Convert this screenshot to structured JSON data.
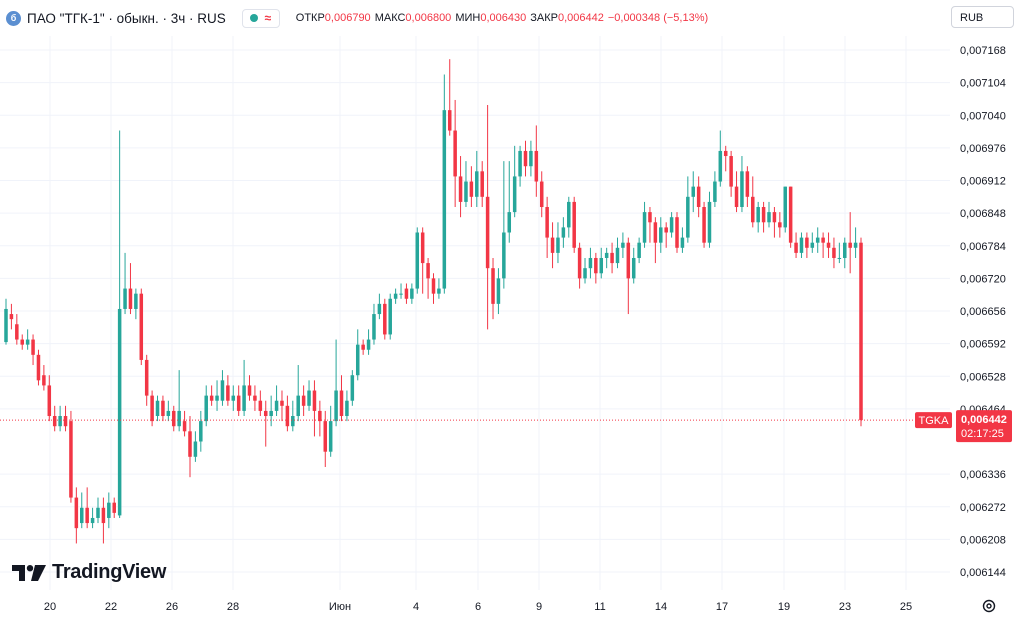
{
  "header": {
    "icon_letter": "б",
    "title": "ПАО \"ТГК-1\" · обыкн. · 3ч · RUS",
    "ohlc": [
      {
        "label": "ОТКР",
        "value": "0,006790"
      },
      {
        "label": "МАКС",
        "value": "0,006800"
      },
      {
        "label": "МИН",
        "value": "0,006430"
      },
      {
        "label": "ЗАКР",
        "value": "0,006442"
      }
    ],
    "change": "−0,000348 (−5,13%)"
  },
  "currency": "RUB",
  "logo_text": "TradingView",
  "last_price": {
    "ticker": "TGKA",
    "value": "0,006442",
    "countdown": "02:17:25"
  },
  "colors": {
    "up": "#26a69a",
    "down": "#f23645",
    "grid": "#f0f3fa",
    "text": "#131722"
  },
  "chart_data": {
    "type": "candlestick",
    "y_ticks": [
      "0,007168",
      "0,007104",
      "0,007040",
      "0,006976",
      "0,006912",
      "0,006848",
      "0,006784",
      "0,006720",
      "0,006656",
      "0,006592",
      "0,006528",
      "0,006464",
      "0,006336",
      "0,006272",
      "0,006208",
      "0,006144"
    ],
    "x_ticks": [
      "20",
      "22",
      "26",
      "28",
      "Июн",
      "4",
      "6",
      "9",
      "11",
      "14",
      "17",
      "19",
      "23",
      "25"
    ],
    "ylim": [
      0.006125,
      0.007195
    ],
    "grid": true,
    "candles": [
      [
        0.006595,
        0.00666,
        0.00668,
        0.00659
      ],
      [
        0.00665,
        0.00664,
        0.00667,
        0.00662
      ],
      [
        0.00663,
        0.0066,
        0.00665,
        0.00659
      ],
      [
        0.0066,
        0.00659,
        0.00661,
        0.00658
      ],
      [
        0.00659,
        0.0066,
        0.00662,
        0.00658
      ],
      [
        0.0066,
        0.00657,
        0.00661,
        0.00655
      ],
      [
        0.00657,
        0.00652,
        0.00658,
        0.00651
      ],
      [
        0.00653,
        0.00651,
        0.00655,
        0.0065
      ],
      [
        0.00651,
        0.00645,
        0.00653,
        0.00644
      ],
      [
        0.00645,
        0.00643,
        0.00647,
        0.00642
      ],
      [
        0.00643,
        0.00645,
        0.00647,
        0.00642
      ],
      [
        0.00645,
        0.00643,
        0.00647,
        0.00642
      ],
      [
        0.00644,
        0.00629,
        0.00646,
        0.00628
      ],
      [
        0.00629,
        0.00623,
        0.00631,
        0.0062
      ],
      [
        0.00624,
        0.00627,
        0.0063,
        0.00623
      ],
      [
        0.00627,
        0.00624,
        0.00631,
        0.00623
      ],
      [
        0.00624,
        0.00625,
        0.00627,
        0.00623
      ],
      [
        0.00625,
        0.00627,
        0.00629,
        0.00624
      ],
      [
        0.00627,
        0.00624,
        0.00629,
        0.0062
      ],
      [
        0.00625,
        0.00628,
        0.0063,
        0.00623
      ],
      [
        0.00628,
        0.00626,
        0.00629,
        0.00625
      ],
      [
        0.006255,
        0.00666,
        0.00701,
        0.00625
      ],
      [
        0.00666,
        0.0067,
        0.00677,
        0.00665
      ],
      [
        0.0067,
        0.00666,
        0.00675,
        0.00665
      ],
      [
        0.00666,
        0.00669,
        0.0067,
        0.00664
      ],
      [
        0.00669,
        0.00656,
        0.0067,
        0.00655
      ],
      [
        0.00656,
        0.00649,
        0.00657,
        0.00647
      ],
      [
        0.00649,
        0.00644,
        0.0065,
        0.00643
      ],
      [
        0.00645,
        0.00648,
        0.00649,
        0.00644
      ],
      [
        0.00648,
        0.00645,
        0.00649,
        0.00644
      ],
      [
        0.00645,
        0.00646,
        0.00648,
        0.00644
      ],
      [
        0.00646,
        0.00643,
        0.00647,
        0.00642
      ],
      [
        0.00643,
        0.00646,
        0.00654,
        0.00642
      ],
      [
        0.00644,
        0.00642,
        0.00646,
        0.00641
      ],
      [
        0.00642,
        0.00637,
        0.00645,
        0.00633
      ],
      [
        0.00637,
        0.0064,
        0.00642,
        0.00636
      ],
      [
        0.0064,
        0.00644,
        0.00646,
        0.00638
      ],
      [
        0.00644,
        0.00649,
        0.00651,
        0.00643
      ],
      [
        0.00649,
        0.00648,
        0.00651,
        0.00647
      ],
      [
        0.00648,
        0.00649,
        0.00652,
        0.00646
      ],
      [
        0.00648,
        0.00652,
        0.00654,
        0.00647
      ],
      [
        0.00651,
        0.00648,
        0.00653,
        0.00647
      ],
      [
        0.00648,
        0.00649,
        0.00651,
        0.00646
      ],
      [
        0.00649,
        0.00646,
        0.00651,
        0.00645
      ],
      [
        0.00646,
        0.00651,
        0.00656,
        0.00645
      ],
      [
        0.00651,
        0.00649,
        0.00653,
        0.00648
      ],
      [
        0.00649,
        0.00648,
        0.00651,
        0.00646
      ],
      [
        0.00648,
        0.00646,
        0.0065,
        0.00645
      ],
      [
        0.00646,
        0.00645,
        0.00648,
        0.00639
      ],
      [
        0.00645,
        0.00646,
        0.00649,
        0.00643
      ],
      [
        0.00646,
        0.00648,
        0.00651,
        0.00645
      ],
      [
        0.00648,
        0.00647,
        0.0065,
        0.00644
      ],
      [
        0.00647,
        0.00643,
        0.00649,
        0.00642
      ],
      [
        0.00643,
        0.00645,
        0.00648,
        0.00642
      ],
      [
        0.00645,
        0.00649,
        0.00655,
        0.00644
      ],
      [
        0.00649,
        0.00647,
        0.00651,
        0.00645
      ],
      [
        0.00647,
        0.0065,
        0.00652,
        0.00646
      ],
      [
        0.0065,
        0.00646,
        0.00652,
        0.00641
      ],
      [
        0.00646,
        0.00644,
        0.00648,
        0.00641
      ],
      [
        0.00644,
        0.00638,
        0.00646,
        0.00635
      ],
      [
        0.00638,
        0.00644,
        0.00647,
        0.00637
      ],
      [
        0.00644,
        0.0065,
        0.0066,
        0.00643
      ],
      [
        0.0065,
        0.00645,
        0.00653,
        0.00644
      ],
      [
        0.00645,
        0.00648,
        0.0065,
        0.00644
      ],
      [
        0.00648,
        0.00653,
        0.00654,
        0.00647
      ],
      [
        0.00653,
        0.00659,
        0.00662,
        0.00652
      ],
      [
        0.00659,
        0.00658,
        0.0066,
        0.00657
      ],
      [
        0.00658,
        0.0066,
        0.00662,
        0.00657
      ],
      [
        0.0066,
        0.00665,
        0.00667,
        0.00659
      ],
      [
        0.00665,
        0.00667,
        0.00669,
        0.00664
      ],
      [
        0.00667,
        0.00661,
        0.00668,
        0.0066
      ],
      [
        0.00661,
        0.00668,
        0.00669,
        0.0066
      ],
      [
        0.00668,
        0.00669,
        0.0067,
        0.00667
      ],
      [
        0.00669,
        0.00669,
        0.00671,
        0.00668
      ],
      [
        0.0067,
        0.00668,
        0.00671,
        0.00667
      ],
      [
        0.00668,
        0.0067,
        0.00671,
        0.00667
      ],
      [
        0.0067,
        0.00681,
        0.00682,
        0.00669
      ],
      [
        0.00681,
        0.00675,
        0.00682,
        0.00669
      ],
      [
        0.00675,
        0.00672,
        0.00676,
        0.00668
      ],
      [
        0.00672,
        0.00669,
        0.00673,
        0.00667
      ],
      [
        0.00669,
        0.0067,
        0.00672,
        0.00668
      ],
      [
        0.0067,
        0.00705,
        0.00712,
        0.00669
      ],
      [
        0.00705,
        0.00701,
        0.00715,
        0.007
      ],
      [
        0.00701,
        0.00692,
        0.00707,
        0.00686
      ],
      [
        0.00692,
        0.00687,
        0.00696,
        0.00684
      ],
      [
        0.00687,
        0.00691,
        0.00695,
        0.00686
      ],
      [
        0.00691,
        0.00688,
        0.00694,
        0.00686
      ],
      [
        0.00688,
        0.00693,
        0.00697,
        0.00686
      ],
      [
        0.00693,
        0.00688,
        0.00695,
        0.00686
      ],
      [
        0.00688,
        0.00674,
        0.00706,
        0.00662
      ],
      [
        0.00674,
        0.00667,
        0.00676,
        0.00664
      ],
      [
        0.00667,
        0.00672,
        0.00674,
        0.00665
      ],
      [
        0.00672,
        0.00681,
        0.00695,
        0.0067
      ],
      [
        0.00681,
        0.00685,
        0.00695,
        0.00679
      ],
      [
        0.00685,
        0.00692,
        0.00698,
        0.00684
      ],
      [
        0.00692,
        0.00697,
        0.00698,
        0.0069
      ],
      [
        0.00697,
        0.00694,
        0.00699,
        0.00692
      ],
      [
        0.00694,
        0.00697,
        0.00699,
        0.00692
      ],
      [
        0.00697,
        0.00691,
        0.00702,
        0.00688
      ],
      [
        0.00691,
        0.00686,
        0.00693,
        0.00684
      ],
      [
        0.00686,
        0.0068,
        0.00688,
        0.00676
      ],
      [
        0.0068,
        0.00677,
        0.00683,
        0.00674
      ],
      [
        0.00677,
        0.0068,
        0.00683,
        0.00675
      ],
      [
        0.0068,
        0.00682,
        0.00684,
        0.00678
      ],
      [
        0.00682,
        0.00687,
        0.00688,
        0.0068
      ],
      [
        0.00687,
        0.00678,
        0.00688,
        0.00677
      ],
      [
        0.00678,
        0.00672,
        0.00679,
        0.0067
      ],
      [
        0.00672,
        0.00674,
        0.00676,
        0.00671
      ],
      [
        0.00674,
        0.00676,
        0.00678,
        0.00672
      ],
      [
        0.00676,
        0.00673,
        0.00677,
        0.00671
      ],
      [
        0.00673,
        0.00676,
        0.00678,
        0.00672
      ],
      [
        0.00676,
        0.00677,
        0.00678,
        0.00674
      ],
      [
        0.00677,
        0.00675,
        0.00679,
        0.00673
      ],
      [
        0.00675,
        0.00678,
        0.0068,
        0.00674
      ],
      [
        0.00678,
        0.00679,
        0.00681,
        0.00676
      ],
      [
        0.00679,
        0.00672,
        0.0068,
        0.00665
      ],
      [
        0.00672,
        0.00676,
        0.00678,
        0.00671
      ],
      [
        0.00676,
        0.00679,
        0.0068,
        0.00675
      ],
      [
        0.00679,
        0.00685,
        0.00687,
        0.00678
      ],
      [
        0.00685,
        0.00683,
        0.00686,
        0.00679
      ],
      [
        0.00683,
        0.00679,
        0.00684,
        0.00675
      ],
      [
        0.00679,
        0.00682,
        0.00684,
        0.00677
      ],
      [
        0.00682,
        0.00681,
        0.00683,
        0.00678
      ],
      [
        0.00681,
        0.00684,
        0.00685,
        0.0068
      ],
      [
        0.00684,
        0.00678,
        0.00685,
        0.00677
      ],
      [
        0.00678,
        0.0068,
        0.00682,
        0.00677
      ],
      [
        0.0068,
        0.00688,
        0.00692,
        0.00679
      ],
      [
        0.00688,
        0.0069,
        0.00693,
        0.00685
      ],
      [
        0.0069,
        0.00686,
        0.00692,
        0.00684
      ],
      [
        0.00686,
        0.00679,
        0.00687,
        0.00678
      ],
      [
        0.00679,
        0.00687,
        0.00689,
        0.00678
      ],
      [
        0.00687,
        0.00691,
        0.00693,
        0.00686
      ],
      [
        0.00691,
        0.00697,
        0.00701,
        0.0069
      ],
      [
        0.00697,
        0.00696,
        0.00698,
        0.00693
      ],
      [
        0.00696,
        0.0069,
        0.00697,
        0.00688
      ],
      [
        0.0069,
        0.00686,
        0.00693,
        0.00685
      ],
      [
        0.00686,
        0.00693,
        0.00696,
        0.00685
      ],
      [
        0.00693,
        0.00688,
        0.00694,
        0.00686
      ],
      [
        0.00688,
        0.00683,
        0.00692,
        0.00682
      ],
      [
        0.00683,
        0.00686,
        0.00687,
        0.00681
      ],
      [
        0.00686,
        0.00683,
        0.00687,
        0.00681
      ],
      [
        0.00683,
        0.00685,
        0.00687,
        0.00682
      ],
      [
        0.00685,
        0.00683,
        0.00686,
        0.0068
      ],
      [
        0.00683,
        0.00682,
        0.00685,
        0.0068
      ],
      [
        0.00682,
        0.0069,
        0.0069,
        0.00681
      ],
      [
        0.0069,
        0.00679,
        0.0069,
        0.00678
      ],
      [
        0.00679,
        0.00677,
        0.00681,
        0.00676
      ],
      [
        0.00677,
        0.0068,
        0.00681,
        0.00676
      ],
      [
        0.0068,
        0.00678,
        0.00681,
        0.00676
      ],
      [
        0.00678,
        0.00679,
        0.00681,
        0.00677
      ],
      [
        0.00679,
        0.0068,
        0.00682,
        0.00677
      ],
      [
        0.0068,
        0.00679,
        0.00681,
        0.00676
      ],
      [
        0.00679,
        0.00678,
        0.00681,
        0.00676
      ],
      [
        0.00678,
        0.00676,
        0.0068,
        0.00674
      ],
      [
        0.00676,
        0.00676,
        0.00679,
        0.00675
      ],
      [
        0.00676,
        0.00679,
        0.0068,
        0.00674
      ],
      [
        0.00679,
        0.00678,
        0.00685,
        0.00673
      ],
      [
        0.00678,
        0.00679,
        0.00682,
        0.00676
      ],
      [
        0.00679,
        0.006442,
        0.0068,
        0.00643
      ]
    ]
  }
}
